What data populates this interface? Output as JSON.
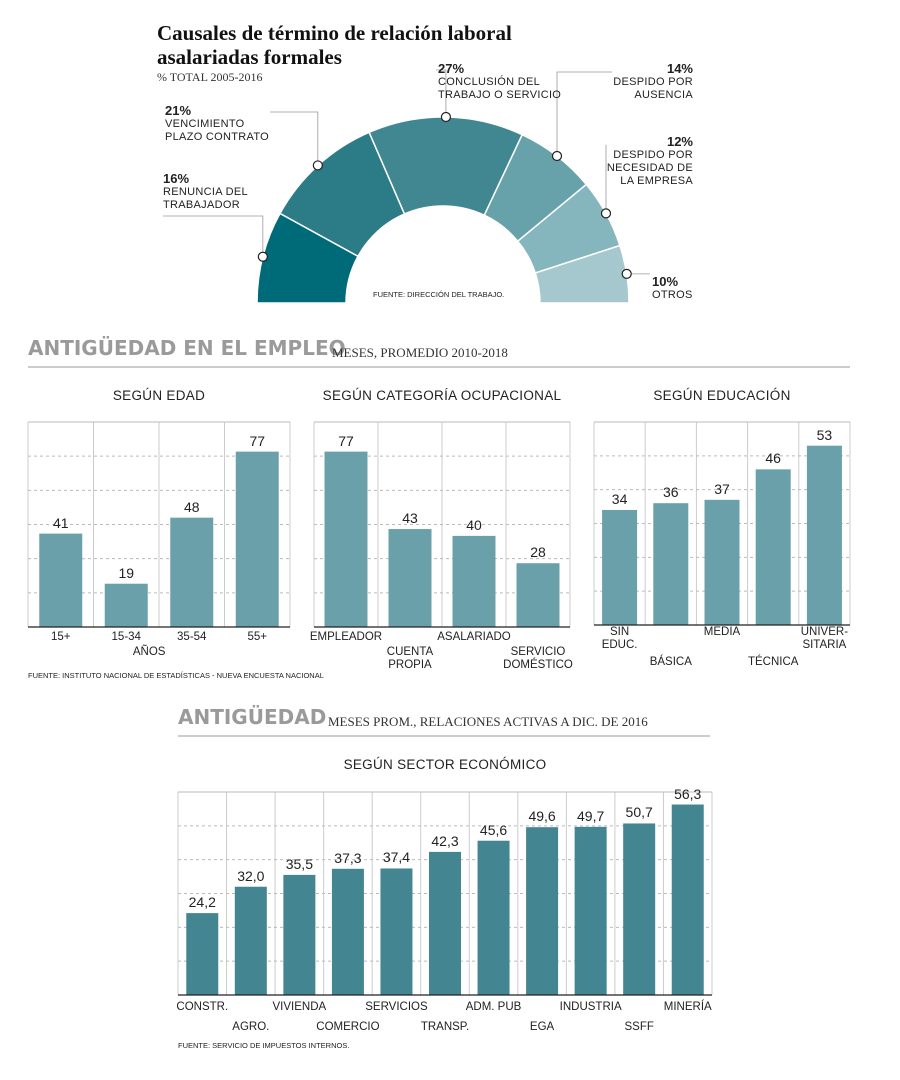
{
  "chart_data": [
    {
      "type": "donut",
      "title": "Causales de término de relación laboral\nasalariadas formales",
      "subtitle": "% TOTAL 2005-2016",
      "categories": [
        "RENUNCIA DEL\nTRABAJADOR",
        "VENCIMIENTO\nPLAZO CONTRATO",
        "CONCLUSIÓN DEL\nTRABAJO O SERVICIO",
        "DESPIDO POR\nAUSENCIA",
        "DESPIDO POR\nNECESIDAD DE\nLA EMPRESA",
        "OTROS"
      ],
      "values": [
        16,
        21,
        27,
        14,
        12,
        10
      ],
      "value_labels": [
        "16%",
        "21%",
        "27%",
        "14%",
        "12%",
        "10%"
      ],
      "colors": [
        "#006b78",
        "#2b7c87",
        "#408791",
        "#67a1aa",
        "#86b6bd",
        "#a4c8cd"
      ],
      "source": "FUENTE: DIRECCIÓN DEL TRABAJO."
    },
    {
      "type": "bar",
      "title": "SEGÚN EDAD",
      "categories": [
        "15+",
        "15-34",
        "35-54",
        "55+"
      ],
      "xlabel": "AÑOS",
      "values": [
        41,
        19,
        48,
        77
      ],
      "color": "#6aa0aa",
      "ylim": [
        0,
        90
      ],
      "yticks": [
        0,
        15,
        30,
        45,
        60,
        75,
        90
      ],
      "grid": true
    },
    {
      "type": "bar",
      "title": "SEGÚN CATEGORÍA OCUPACIONAL",
      "categories": [
        "EMPLEADOR",
        "CUENTA\nPROPIA",
        "ASALARIADO",
        "SERVICIO\nDOMÉSTICO"
      ],
      "values": [
        77,
        43,
        40,
        28
      ],
      "color": "#6aa0aa",
      "ylim": [
        0,
        90
      ],
      "yticks": [
        0,
        15,
        30,
        45,
        60,
        75,
        90
      ],
      "grid": true
    },
    {
      "type": "bar",
      "title": "SEGÚN EDUCACIÓN",
      "categories": [
        "SIN\nEDUC.",
        "BÁSICA",
        "MEDIA",
        "TÉCNICA",
        "UNIVER-\nSITARIA"
      ],
      "values": [
        34,
        36,
        37,
        46,
        53
      ],
      "color": "#6aa0aa",
      "ylim": [
        0,
        60
      ],
      "yticks": [
        0,
        10,
        20,
        30,
        40,
        50,
        60
      ],
      "grid": true
    },
    {
      "type": "bar",
      "title": "SEGÚN SECTOR ECONÓMICO",
      "categories": [
        "CONSTR.",
        "AGRO.",
        "VIVIENDA",
        "COMERCIO",
        "SERVICIOS",
        "TRANSP.",
        "ADM. PUB",
        "EGA",
        "INDUSTRIA",
        "SSFF",
        "MINERÍA"
      ],
      "values": [
        24.2,
        32.0,
        35.5,
        37.3,
        37.4,
        42.3,
        45.6,
        49.6,
        49.7,
        50.7,
        56.3
      ],
      "value_labels": [
        "24,2",
        "32,0",
        "35,5",
        "37,3",
        "37,4",
        "42,3",
        "45,6",
        "49,6",
        "49,7",
        "50,7",
        "56,3"
      ],
      "color": "#438591",
      "ylim": [
        0,
        60
      ],
      "yticks": [
        0,
        10,
        20,
        30,
        40,
        50,
        60
      ],
      "grid": true
    }
  ],
  "sections": [
    {
      "title": "ANTIGÜEDAD EN EL EMPLEO",
      "subtitle": "MESES, PROMEDIO 2010-2018",
      "source": "FUENTE: INSTITUTO NACIONAL DE ESTADÍSTICAS - NUEVA ENCUESTA NACIONAL"
    },
    {
      "title": "ANTIGÜEDAD",
      "subtitle": "MESES PROM., RELACIONES ACTIVAS A DIC. DE 2016",
      "source": "FUENTE: SERVICIO DE IMPUESTOS INTERNOS."
    }
  ]
}
